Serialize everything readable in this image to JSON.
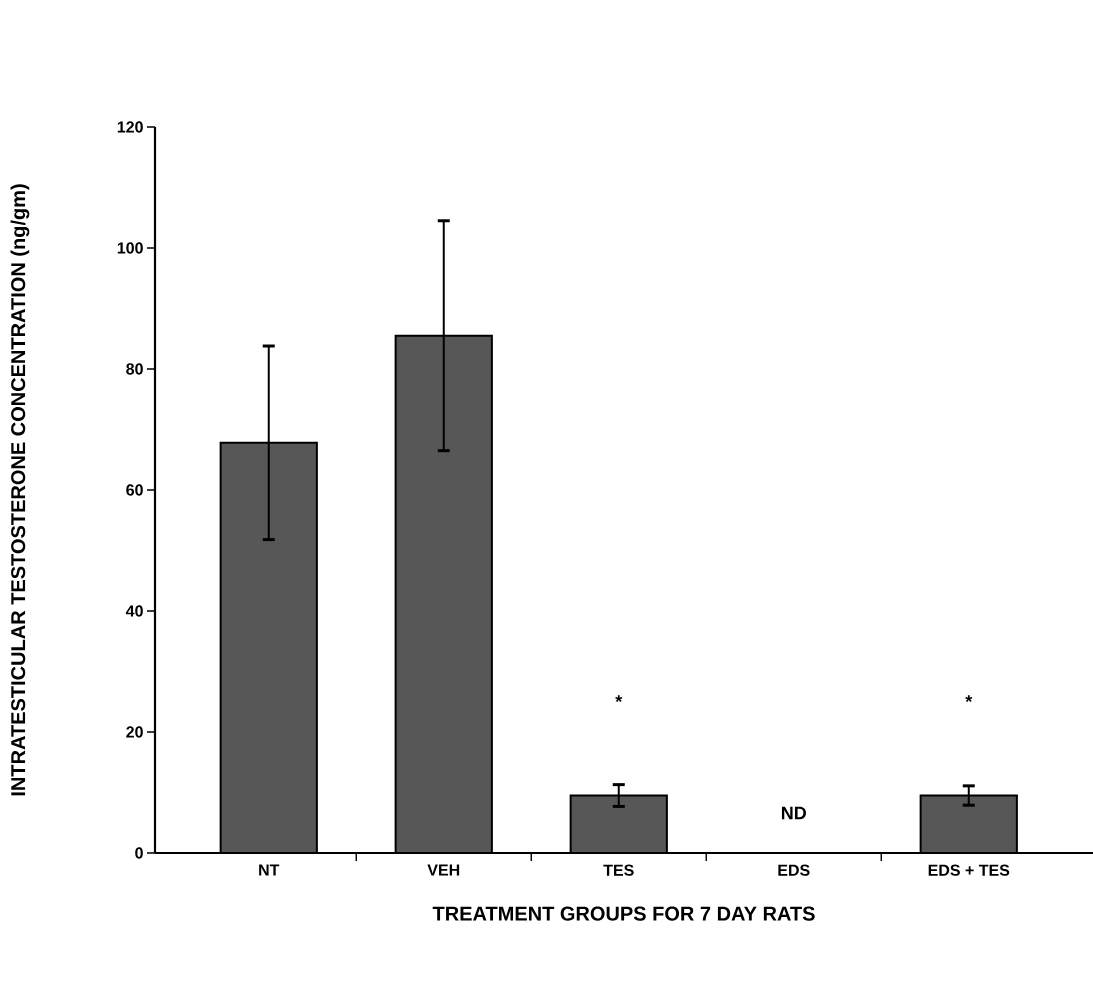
{
  "chart_data": {
    "type": "bar",
    "xlabel": "TREATMENT GROUPS FOR 7 DAY RATS",
    "ylabel": "INTRATESTICULAR TESTOSTERONE CONCENTRATION (ng/gm)",
    "categories": [
      "NT",
      "VEH",
      "TES",
      "EDS",
      "EDS + TES"
    ],
    "values": [
      67.8,
      85.5,
      9.5,
      null,
      9.5
    ],
    "errors": [
      16,
      19,
      1.8,
      null,
      1.6
    ],
    "color": "#575757",
    "ylim": [
      0,
      120
    ],
    "yticks": [
      0,
      20,
      40,
      60,
      80,
      100,
      120
    ],
    "annotations": [
      "*",
      "ND",
      "*"
    ]
  }
}
